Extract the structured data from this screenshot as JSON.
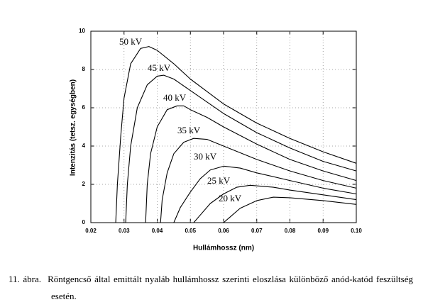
{
  "chart_data": {
    "type": "line",
    "x_label": "Hullámhossz (nm)",
    "y_label": "Intenzitás (tetsz. egységben)",
    "xlim": [
      0.02,
      0.1
    ],
    "xticks": [
      0.02,
      0.03,
      0.04,
      0.05,
      0.06,
      0.07,
      0.08,
      0.09,
      {
        "value": 0.1,
        "label": "0.10"
      }
    ],
    "ylim": [
      0,
      10
    ],
    "yticks": [
      0,
      2,
      4,
      6,
      8,
      10
    ],
    "grid": true,
    "series": [
      {
        "name": "50 kV",
        "color": "#000000",
        "x": [
          0.0275,
          0.028,
          0.029,
          0.03,
          0.032,
          0.035,
          0.0375,
          0.04,
          0.045,
          0.05,
          0.06,
          0.07,
          0.08,
          0.09,
          0.1
        ],
        "values": [
          0,
          2,
          4.5,
          6.5,
          8.3,
          9.1,
          9.2,
          9.0,
          8.3,
          7.5,
          6.2,
          5.2,
          4.4,
          3.7,
          3.1
        ]
      },
      {
        "name": "45 kV",
        "color": "#000000",
        "x": [
          0.0305,
          0.031,
          0.032,
          0.034,
          0.037,
          0.04,
          0.042,
          0.045,
          0.05,
          0.06,
          0.07,
          0.08,
          0.09,
          0.1
        ],
        "values": [
          0,
          2,
          4,
          6,
          7.2,
          7.65,
          7.7,
          7.5,
          6.9,
          5.7,
          4.7,
          3.9,
          3.2,
          2.7
        ]
      },
      {
        "name": "40 kV",
        "color": "#000000",
        "x": [
          0.0365,
          0.037,
          0.038,
          0.04,
          0.043,
          0.046,
          0.048,
          0.05,
          0.055,
          0.06,
          0.07,
          0.08,
          0.09,
          0.1
        ],
        "values": [
          0,
          2,
          3.6,
          5,
          5.9,
          6.1,
          6.1,
          5.9,
          5.5,
          5.0,
          4.1,
          3.3,
          2.7,
          2.2
        ]
      },
      {
        "name": "35 kV",
        "color": "#000000",
        "x": [
          0.041,
          0.0415,
          0.043,
          0.045,
          0.048,
          0.051,
          0.055,
          0.06,
          0.07,
          0.08,
          0.09,
          0.1
        ],
        "values": [
          0,
          1.2,
          2.6,
          3.6,
          4.2,
          4.4,
          4.35,
          4.0,
          3.3,
          2.7,
          2.2,
          1.8
        ]
      },
      {
        "name": "30 kV",
        "color": "#000000",
        "x": [
          0.045,
          0.047,
          0.05,
          0.053,
          0.056,
          0.06,
          0.065,
          0.07,
          0.08,
          0.09,
          0.1
        ],
        "values": [
          0,
          0.8,
          1.6,
          2.3,
          2.75,
          2.95,
          2.85,
          2.6,
          2.2,
          1.8,
          1.5
        ]
      },
      {
        "name": "25 kV",
        "color": "#000000",
        "x": [
          0.051,
          0.053,
          0.056,
          0.06,
          0.064,
          0.068,
          0.075,
          0.08,
          0.09,
          0.1
        ],
        "values": [
          0,
          0.4,
          1.0,
          1.5,
          1.85,
          1.95,
          1.85,
          1.7,
          1.45,
          1.2
        ]
      },
      {
        "name": "20 kV",
        "color": "#000000",
        "x": [
          0.06,
          0.062,
          0.065,
          0.07,
          0.075,
          0.08,
          0.09,
          0.1
        ],
        "values": [
          0,
          0.3,
          0.75,
          1.15,
          1.33,
          1.3,
          1.15,
          0.95
        ]
      }
    ]
  },
  "caption": {
    "number": "11. ábra.",
    "text": "Röntgencső által emittált nyaláb hullámhossz szerinti eloszlása különböző anód-katód feszültség esetén."
  }
}
